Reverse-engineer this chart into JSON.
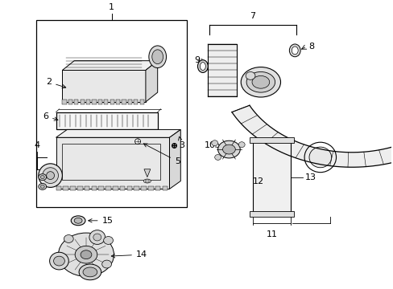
{
  "bg_color": "#ffffff",
  "line_color": "#000000",
  "gray_light": "#d0d0d0",
  "gray_mid": "#b0b0b0",
  "gray_dark": "#888888",
  "fig_width": 4.89,
  "fig_height": 3.6,
  "dpi": 100
}
